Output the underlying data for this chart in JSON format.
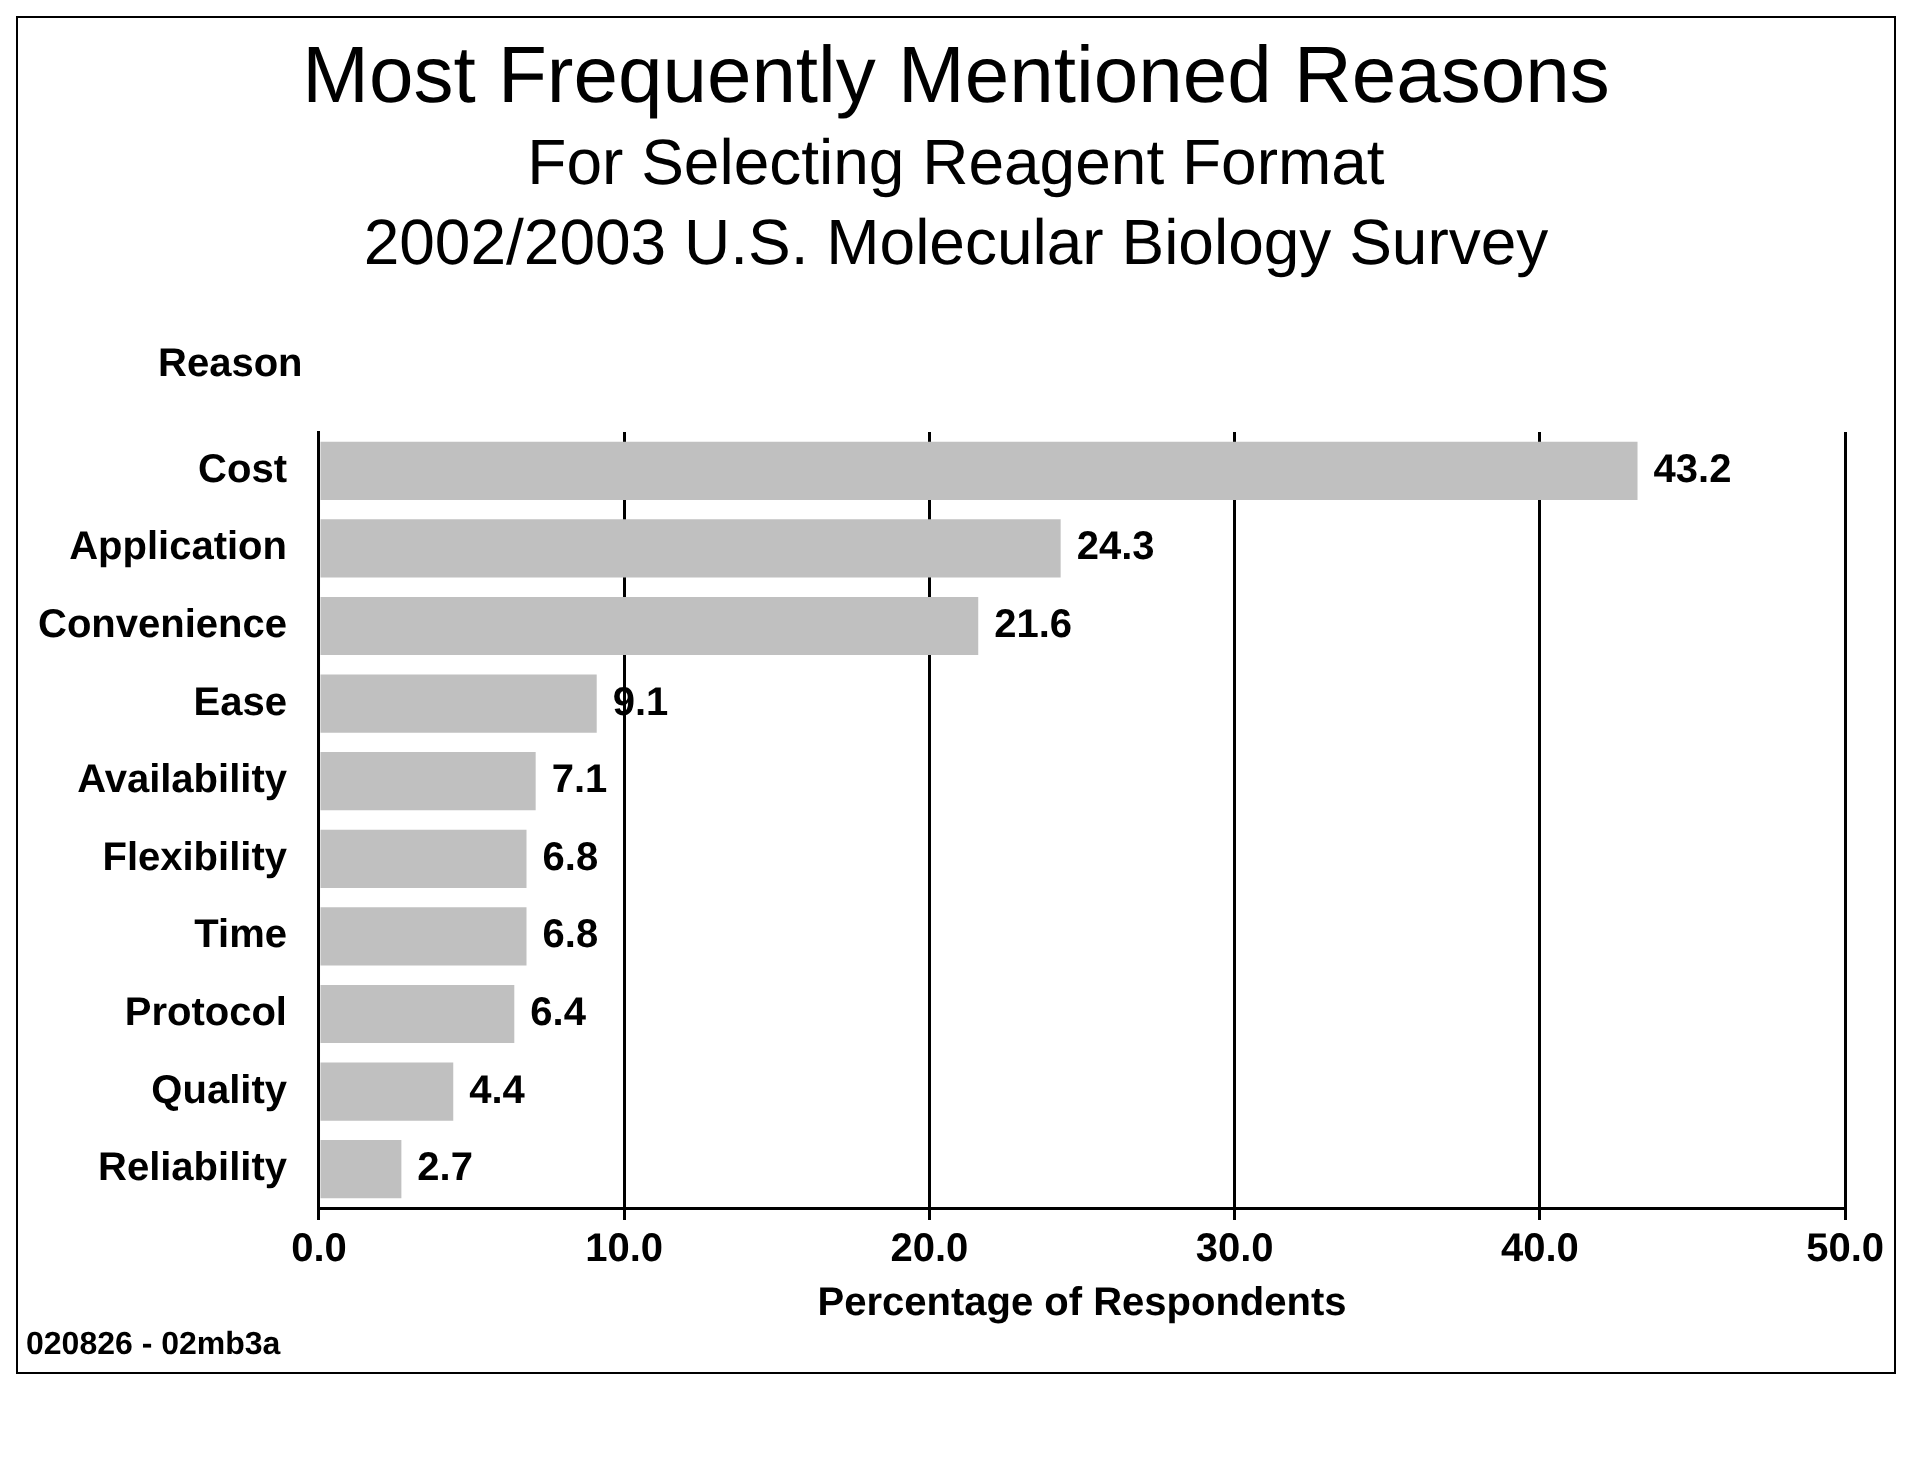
{
  "chart_data": {
    "type": "bar",
    "orientation": "horizontal",
    "title": "Most Frequently Mentioned Reasons",
    "subtitle": "For Selecting Reagent Format\n2002/2003 U.S. Molecular Biology Survey",
    "ylabel": "Reason",
    "xlabel": "Percentage of Respondents",
    "categories": [
      "Cost",
      "Application",
      "Convenience",
      "Ease",
      "Availability",
      "Flexibility",
      "Time",
      "Protocol",
      "Quality",
      "Reliability"
    ],
    "values": [
      43.2,
      24.3,
      21.6,
      9.1,
      7.1,
      6.8,
      6.8,
      6.4,
      4.4,
      2.7
    ],
    "color": "#c0c0c0",
    "xlim": [
      0,
      50
    ],
    "xticks": [
      {
        "value": 0,
        "label": "0.0"
      },
      {
        "value": 10,
        "label": "10.0"
      },
      {
        "value": 20,
        "label": "20.0"
      },
      {
        "value": 30,
        "label": "30.0"
      },
      {
        "value": 40,
        "label": "40.0"
      },
      {
        "value": 50,
        "label": "50.0"
      }
    ],
    "grid": "x",
    "data_labels": true,
    "legend": false,
    "annotations": [
      "020826 - 02mb3a"
    ]
  }
}
